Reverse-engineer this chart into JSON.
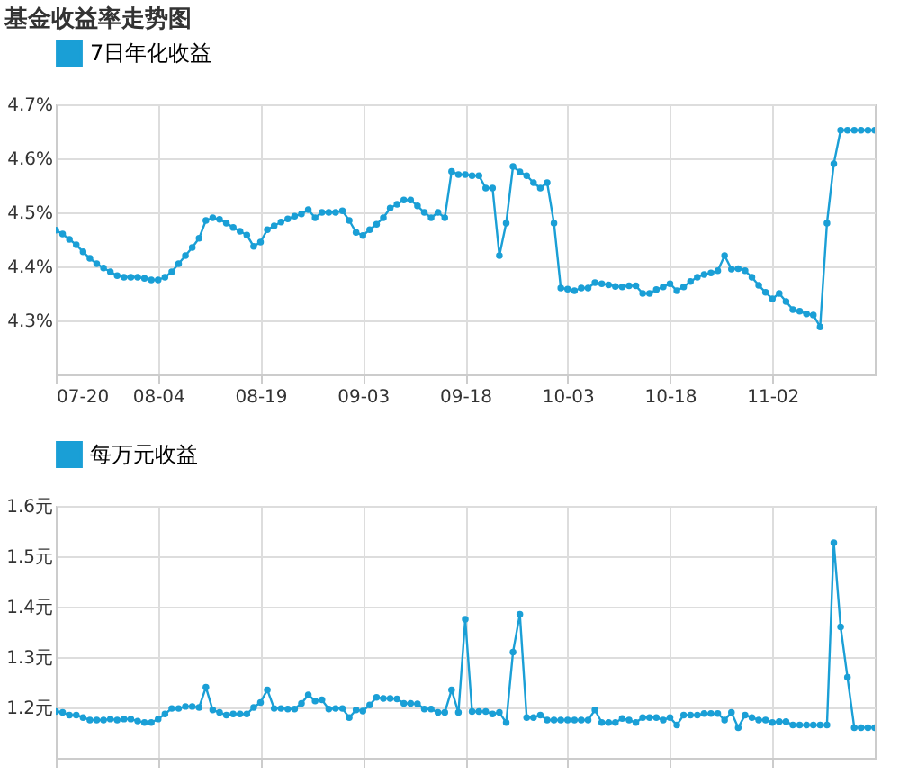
{
  "chart_data": [
    {
      "type": "line",
      "title": "基金收益率走势图",
      "legend": "top left",
      "grid": true,
      "marker": "circle",
      "line_style": "solid",
      "x": [
        "--07-20",
        "--07-21",
        "--07-22",
        "--07-23",
        "--07-24",
        "--07-25",
        "--07-26",
        "--07-27",
        "--07-28",
        "--07-29",
        "--07-30",
        "--07-31",
        "--08-01",
        "--08-02",
        "--08-03",
        "--08-04",
        "--08-05",
        "--08-06",
        "--08-07",
        "--08-08",
        "--08-09",
        "--08-10",
        "--08-11",
        "--08-12",
        "--08-13",
        "--08-14",
        "--08-15",
        "--08-16",
        "--08-17",
        "--08-18",
        "--08-19",
        "--08-20",
        "--08-21",
        "--08-22",
        "--08-23",
        "--08-24",
        "--08-25",
        "--08-26",
        "--08-27",
        "--08-28",
        "--08-29",
        "--08-30",
        "--08-31",
        "--09-01",
        "--09-02",
        "--09-03",
        "--09-04",
        "--09-05",
        "--09-06",
        "--09-07",
        "--09-08",
        "--09-09",
        "--09-10",
        "--09-11",
        "--09-12",
        "--09-13",
        "--09-14",
        "--09-15",
        "--09-16",
        "--09-17",
        "--09-18",
        "--09-19",
        "--09-20",
        "--09-21",
        "--09-22",
        "--09-23",
        "--09-24",
        "--09-25",
        "--09-26",
        "--09-27",
        "--09-28",
        "--09-29",
        "--09-30",
        "--10-01",
        "--10-02",
        "--10-03",
        "--10-04",
        "--10-05",
        "--10-06",
        "--10-07",
        "--10-08",
        "--10-09",
        "--10-10",
        "--10-11",
        "--10-12",
        "--10-13",
        "--10-14",
        "--10-15",
        "--10-16",
        "--10-17",
        "--10-18",
        "--10-19",
        "--10-20",
        "--10-21",
        "--10-22",
        "--10-23",
        "--10-24",
        "--10-25",
        "--10-26",
        "--10-27",
        "--10-28",
        "--10-29",
        "--10-30",
        "--10-31",
        "--11-01",
        "--11-02",
        "--11-03",
        "--11-04",
        "--11-05",
        "--11-06",
        "--11-07",
        "--11-08",
        "--11-09",
        "--11-10",
        "--11-11",
        "--11-12",
        "--11-13",
        "--11-14",
        "--11-15",
        "--11-16",
        "--11-17"
      ],
      "series": [
        {
          "name": "7日年化收益",
          "color": "#1a9fd6",
          "values": [
            4.467,
            4.46,
            4.45,
            4.44,
            4.427,
            4.415,
            4.405,
            4.397,
            4.39,
            4.383,
            4.38,
            4.38,
            4.38,
            4.378,
            4.375,
            4.375,
            4.38,
            4.39,
            4.405,
            4.42,
            4.435,
            4.452,
            4.485,
            4.49,
            4.487,
            4.48,
            4.472,
            4.465,
            4.458,
            4.437,
            4.445,
            4.468,
            4.475,
            4.482,
            4.488,
            4.493,
            4.497,
            4.505,
            4.49,
            4.5,
            4.5,
            4.5,
            4.503,
            4.485,
            4.463,
            4.457,
            4.468,
            4.478,
            4.49,
            4.508,
            4.515,
            4.523,
            4.523,
            4.512,
            4.5,
            4.49,
            4.5,
            4.49,
            4.576,
            4.57,
            4.57,
            4.568,
            4.568,
            4.545,
            4.545,
            4.42,
            4.48,
            4.585,
            4.575,
            4.568,
            4.555,
            4.545,
            4.555,
            4.48,
            4.36,
            4.358,
            4.355,
            4.36,
            4.36,
            4.37,
            4.368,
            4.366,
            4.363,
            4.362,
            4.364,
            4.364,
            4.35,
            4.35,
            4.357,
            4.362,
            4.368,
            4.355,
            4.362,
            4.372,
            4.38,
            4.385,
            4.388,
            4.392,
            4.42,
            4.395,
            4.396,
            4.392,
            4.38,
            4.365,
            4.352,
            4.34,
            4.35,
            4.335,
            4.32,
            4.317,
            4.312,
            4.31,
            4.288,
            4.48,
            4.59,
            4.652,
            4.652,
            4.652,
            4.652,
            4.652,
            4.652
          ]
        }
      ],
      "xlim": [
        "--07-20",
        "--11-17"
      ],
      "xticks": [
        {
          "value": "--07-20",
          "label": "07-20"
        },
        {
          "value": "--08-04",
          "label": "08-04"
        },
        {
          "value": "--08-19",
          "label": "08-19"
        },
        {
          "value": "--09-03",
          "label": "09-03"
        },
        {
          "value": "--09-18",
          "label": "09-18"
        },
        {
          "value": "--10-03",
          "label": "10-03"
        },
        {
          "value": "--10-18",
          "label": "10-18"
        },
        {
          "value": "--11-02",
          "label": "11-02"
        }
      ],
      "ylim": [
        4.2,
        4.7
      ],
      "yticks": [
        {
          "value": 4.3,
          "label": "4.3%"
        },
        {
          "value": 4.4,
          "label": "4.4%"
        },
        {
          "value": 4.5,
          "label": "4.5%"
        },
        {
          "value": 4.6,
          "label": "4.6%"
        },
        {
          "value": 4.7,
          "label": "4.7%"
        }
      ]
    },
    {
      "type": "line",
      "legend": "top left",
      "grid": true,
      "marker": "circle",
      "line_style": "solid",
      "tick_labels": "y",
      "x": [
        "--07-20",
        "--07-21",
        "--07-22",
        "--07-23",
        "--07-24",
        "--07-25",
        "--07-26",
        "--07-27",
        "--07-28",
        "--07-29",
        "--07-30",
        "--07-31",
        "--08-01",
        "--08-02",
        "--08-03",
        "--08-04",
        "--08-05",
        "--08-06",
        "--08-07",
        "--08-08",
        "--08-09",
        "--08-10",
        "--08-11",
        "--08-12",
        "--08-13",
        "--08-14",
        "--08-15",
        "--08-16",
        "--08-17",
        "--08-18",
        "--08-19",
        "--08-20",
        "--08-21",
        "--08-22",
        "--08-23",
        "--08-24",
        "--08-25",
        "--08-26",
        "--08-27",
        "--08-28",
        "--08-29",
        "--08-30",
        "--08-31",
        "--09-01",
        "--09-02",
        "--09-03",
        "--09-04",
        "--09-05",
        "--09-06",
        "--09-07",
        "--09-08",
        "--09-09",
        "--09-10",
        "--09-11",
        "--09-12",
        "--09-13",
        "--09-14",
        "--09-15",
        "--09-16",
        "--09-17",
        "--09-18",
        "--09-19",
        "--09-20",
        "--09-21",
        "--09-22",
        "--09-23",
        "--09-24",
        "--09-25",
        "--09-26",
        "--09-27",
        "--09-28",
        "--09-29",
        "--09-30",
        "--10-01",
        "--10-02",
        "--10-03",
        "--10-04",
        "--10-05",
        "--10-06",
        "--10-07",
        "--10-08",
        "--10-09",
        "--10-10",
        "--10-11",
        "--10-12",
        "--10-13",
        "--10-14",
        "--10-15",
        "--10-16",
        "--10-17",
        "--10-18",
        "--10-19",
        "--10-20",
        "--10-21",
        "--10-22",
        "--10-23",
        "--10-24",
        "--10-25",
        "--10-26",
        "--10-27",
        "--10-28",
        "--10-29",
        "--10-30",
        "--10-31",
        "--11-01",
        "--11-02",
        "--11-03",
        "--11-04",
        "--11-05",
        "--11-06",
        "--11-07",
        "--11-08",
        "--11-09",
        "--11-10",
        "--11-11",
        "--11-12",
        "--11-13",
        "--11-14",
        "--11-15",
        "--11-16",
        "--11-17"
      ],
      "series": [
        {
          "name": "每万元收益",
          "color": "#1a9fd6",
          "values": [
            1.192,
            1.19,
            1.185,
            1.185,
            1.18,
            1.175,
            1.175,
            1.175,
            1.177,
            1.175,
            1.177,
            1.177,
            1.173,
            1.17,
            1.17,
            1.177,
            1.187,
            1.198,
            1.198,
            1.202,
            1.202,
            1.2,
            1.24,
            1.195,
            1.19,
            1.185,
            1.187,
            1.187,
            1.187,
            1.2,
            1.21,
            1.235,
            1.198,
            1.198,
            1.197,
            1.197,
            1.208,
            1.225,
            1.213,
            1.215,
            1.197,
            1.198,
            1.198,
            1.18,
            1.195,
            1.193,
            1.205,
            1.22,
            1.218,
            1.218,
            1.217,
            1.208,
            1.208,
            1.207,
            1.197,
            1.197,
            1.19,
            1.19,
            1.235,
            1.19,
            1.375,
            1.192,
            1.192,
            1.192,
            1.187,
            1.19,
            1.17,
            1.31,
            1.385,
            1.18,
            1.18,
            1.185,
            1.175,
            1.175,
            1.175,
            1.175,
            1.175,
            1.175,
            1.175,
            1.195,
            1.17,
            1.17,
            1.17,
            1.178,
            1.175,
            1.17,
            1.18,
            1.18,
            1.18,
            1.175,
            1.18,
            1.165,
            1.185,
            1.185,
            1.185,
            1.188,
            1.188,
            1.188,
            1.175,
            1.19,
            1.16,
            1.185,
            1.18,
            1.175,
            1.175,
            1.17,
            1.172,
            1.172,
            1.165,
            1.165,
            1.165,
            1.165,
            1.165,
            1.165,
            1.527,
            1.36,
            1.26,
            1.16,
            1.16,
            1.16,
            1.16
          ]
        }
      ],
      "xlim": [
        "--07-20",
        "--11-17"
      ],
      "xticks": [
        "--07-20",
        "--08-04",
        "--08-19",
        "--09-03",
        "--09-18",
        "--10-03",
        "--10-18",
        "--11-02"
      ],
      "ylim": [
        1.1,
        1.6
      ],
      "yticks": [
        {
          "value": 1.2,
          "label": "1.2元"
        },
        {
          "value": 1.3,
          "label": "1.3元"
        },
        {
          "value": 1.4,
          "label": "1.4元"
        },
        {
          "value": 1.5,
          "label": "1.5元"
        },
        {
          "value": 1.6,
          "label": "1.6元"
        }
      ]
    }
  ]
}
